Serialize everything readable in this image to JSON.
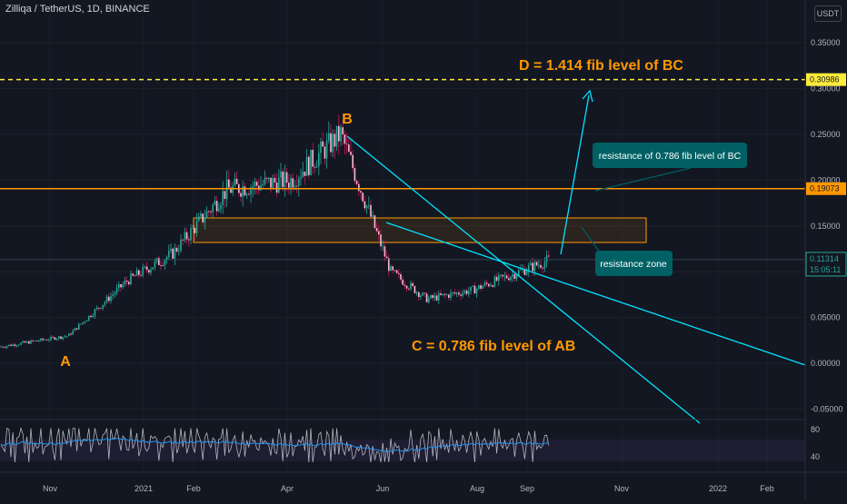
{
  "header": {
    "symbol": "Zilliqa / TetherUS, 1D, BINANCE",
    "currency": "USDT"
  },
  "chart_data": {
    "type": "candlestick",
    "y_axis": {
      "ticks": [
        "0.35000",
        "0.30000",
        "0.25000",
        "0.20000",
        "0.15000",
        "0.10000",
        "0.05000",
        "0.00000",
        "-0.05000"
      ]
    },
    "x_axis": {
      "ticks": [
        "Nov",
        "2021",
        "Feb",
        "Apr",
        "Jun",
        "Aug",
        "Sep",
        "Nov",
        "2022",
        "Feb"
      ]
    },
    "price_labels": {
      "fib_level_D": "0.30986",
      "resistance_level": "0.19073",
      "last_price": "0.11314",
      "countdown": "15:05:11"
    },
    "anchor_prices": [
      {
        "month": "Oct 2020",
        "price": 0.018
      },
      {
        "month": "Dec 2020",
        "price": 0.03
      },
      {
        "month": "Jan 2021",
        "price": 0.09
      },
      {
        "month": "Feb 2021",
        "price": 0.12
      },
      {
        "month": "Mar 2021",
        "price": 0.19
      },
      {
        "month": "Apr 2021",
        "price": 0.2
      },
      {
        "month": "May 2021",
        "price": 0.25
      },
      {
        "month": "Jun 2021",
        "price": 0.1
      },
      {
        "month": "Jul 2021",
        "price": 0.07
      },
      {
        "month": "Aug 2021",
        "price": 0.08
      },
      {
        "month": "Sep 2021",
        "price": 0.113
      }
    ],
    "annotations": {
      "A": "A",
      "B": "B",
      "C": "C = 0.786 fib level of AB",
      "D": "D = 1.414 fib level of BC",
      "callout_resistance_fib": "resistance of 0.786 fib level of BC",
      "callout_resistance_zone": "resistance zone"
    },
    "rsi": {
      "ticks": [
        "80",
        "40"
      ]
    },
    "colors": {
      "bg": "#131722",
      "up": "#26a69a",
      "down": "#c2185b",
      "annotation": "#ff9800",
      "trendline": "#00e5ff",
      "callout": "#006064",
      "rsi_line": "#b2b5be",
      "rsi_ma": "#2196f3"
    }
  }
}
